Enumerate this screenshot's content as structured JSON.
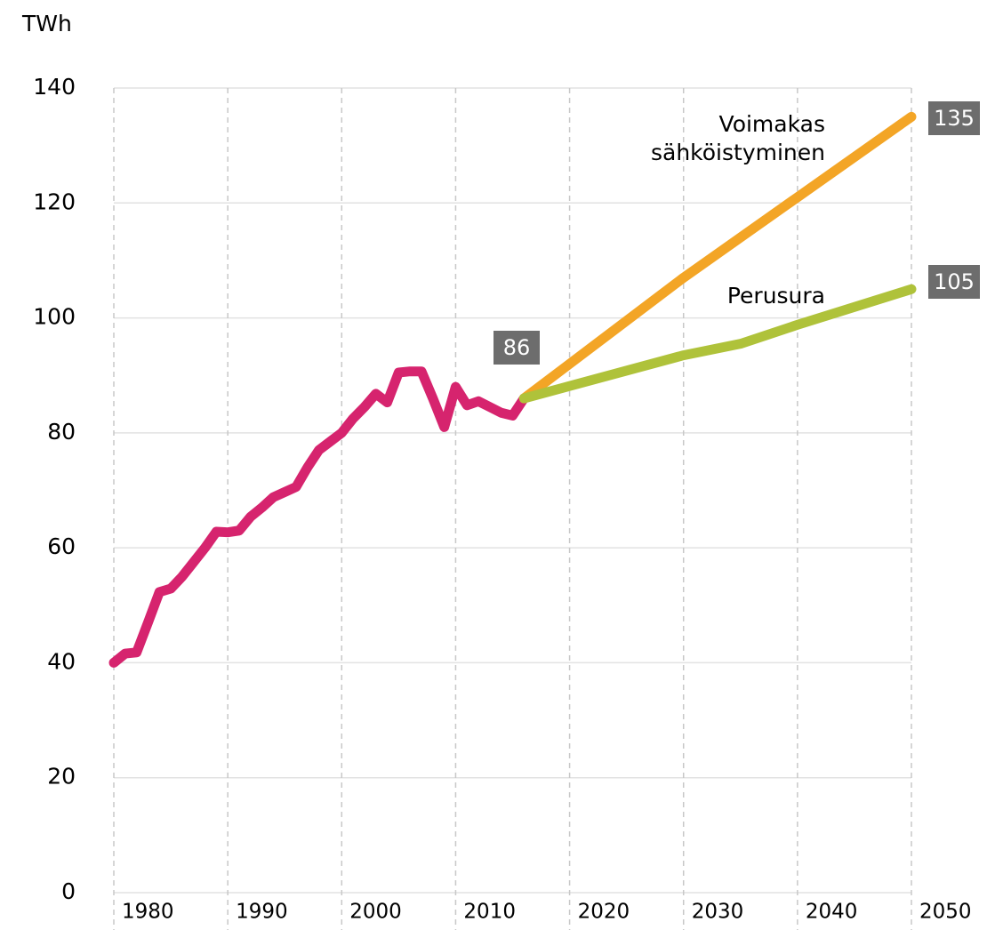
{
  "chart_data": {
    "type": "line",
    "y_label": "TWh",
    "xlim": [
      1980,
      2050
    ],
    "xticks": [
      1980,
      1990,
      2000,
      2010,
      2020,
      2030,
      2040,
      2050
    ],
    "ylim": [
      0,
      140
    ],
    "yticks": [
      0,
      20,
      40,
      60,
      80,
      100,
      120,
      140
    ],
    "grid": true,
    "series": [
      {
        "color": "#d6246e",
        "x": [
          1980,
          1981,
          1982,
          1983,
          1984,
          1985,
          1986,
          1987,
          1988,
          1989,
          1990,
          1991,
          1992,
          1993,
          1994,
          1995,
          1996,
          1997,
          1998,
          1999,
          2000,
          2001,
          2002,
          2003,
          2004,
          2005,
          2006,
          2007,
          2008,
          2009,
          2010,
          2011,
          2012,
          2013,
          2014,
          2015,
          2016
        ],
        "values": [
          40,
          41.6,
          41.8,
          47,
          52.3,
          52.9,
          55,
          57.5,
          60,
          62.8,
          62.7,
          63,
          65.4,
          67,
          68.8,
          69.7,
          70.6,
          74,
          77,
          78.5,
          80,
          82.5,
          84.5,
          86.8,
          85.3,
          90.5,
          90.7,
          90.7,
          86,
          81,
          88,
          84.8,
          85.5,
          84.5,
          83.5,
          83,
          86
        ]
      },
      {
        "name": "Voimakas sähköistyminen",
        "color": "#f3a526",
        "x": [
          2016,
          2030,
          2040,
          2050
        ],
        "values": [
          86,
          107,
          121,
          135
        ]
      },
      {
        "name": "Perusura",
        "color": "#afc23a",
        "x": [
          2016,
          2030,
          2035,
          2040,
          2050
        ],
        "values": [
          86,
          93.5,
          95.5,
          98.8,
          105
        ]
      }
    ]
  }
}
